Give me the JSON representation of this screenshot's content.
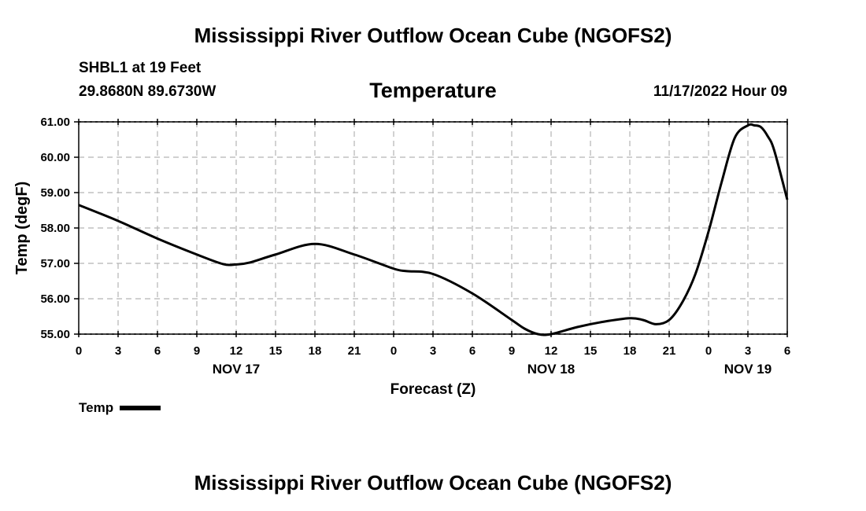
{
  "header": {
    "title": "Mississippi River Outflow Ocean Cube (NGOFS2)",
    "station": "SHBL1 at 19 Feet",
    "coords": "29.8680N  89.6730W",
    "subtitle": "Temperature",
    "datetime": "11/17/2022 Hour 09"
  },
  "footer": {
    "title": "Mississippi River Outflow Ocean Cube (NGOFS2)"
  },
  "legend": {
    "label": "Temp"
  },
  "chart_data": {
    "type": "line",
    "title": "Temperature",
    "xlabel": "Forecast (Z)",
    "ylabel": "Temp (degF)",
    "xlim": [
      0,
      54
    ],
    "ylim": [
      55.0,
      61.0
    ],
    "yticks": [
      "55.00",
      "56.00",
      "57.00",
      "58.00",
      "59.00",
      "60.00",
      "61.00"
    ],
    "xtick_labels": [
      "0",
      "3",
      "6",
      "9",
      "12",
      "15",
      "18",
      "21",
      "0",
      "3",
      "6",
      "9",
      "12",
      "15",
      "18",
      "21",
      "0",
      "3",
      "6"
    ],
    "day_labels": [
      {
        "label": "NOV 17",
        "hour": 12
      },
      {
        "label": "NOV 18",
        "hour": 36
      },
      {
        "label": "NOV 19",
        "hour": 51
      }
    ],
    "grid": true,
    "series": [
      {
        "name": "Temp",
        "color": "#000000",
        "x": [
          0,
          3,
          6,
          9,
          11,
          12,
          13,
          15,
          18,
          21,
          24,
          25,
          27,
          30,
          33,
          34,
          35,
          36,
          38,
          40,
          42,
          43,
          44,
          45,
          46,
          47,
          48,
          49,
          50,
          51,
          51.5,
          52,
          52.5,
          53,
          54
        ],
        "y": [
          58.65,
          58.2,
          57.7,
          57.25,
          56.98,
          56.97,
          57.02,
          57.25,
          57.55,
          57.25,
          56.85,
          56.78,
          56.7,
          56.15,
          55.4,
          55.15,
          55.0,
          55.0,
          55.2,
          55.35,
          55.45,
          55.4,
          55.28,
          55.4,
          55.9,
          56.7,
          57.9,
          59.3,
          60.55,
          60.9,
          60.9,
          60.85,
          60.6,
          60.2,
          58.8
        ]
      }
    ]
  }
}
